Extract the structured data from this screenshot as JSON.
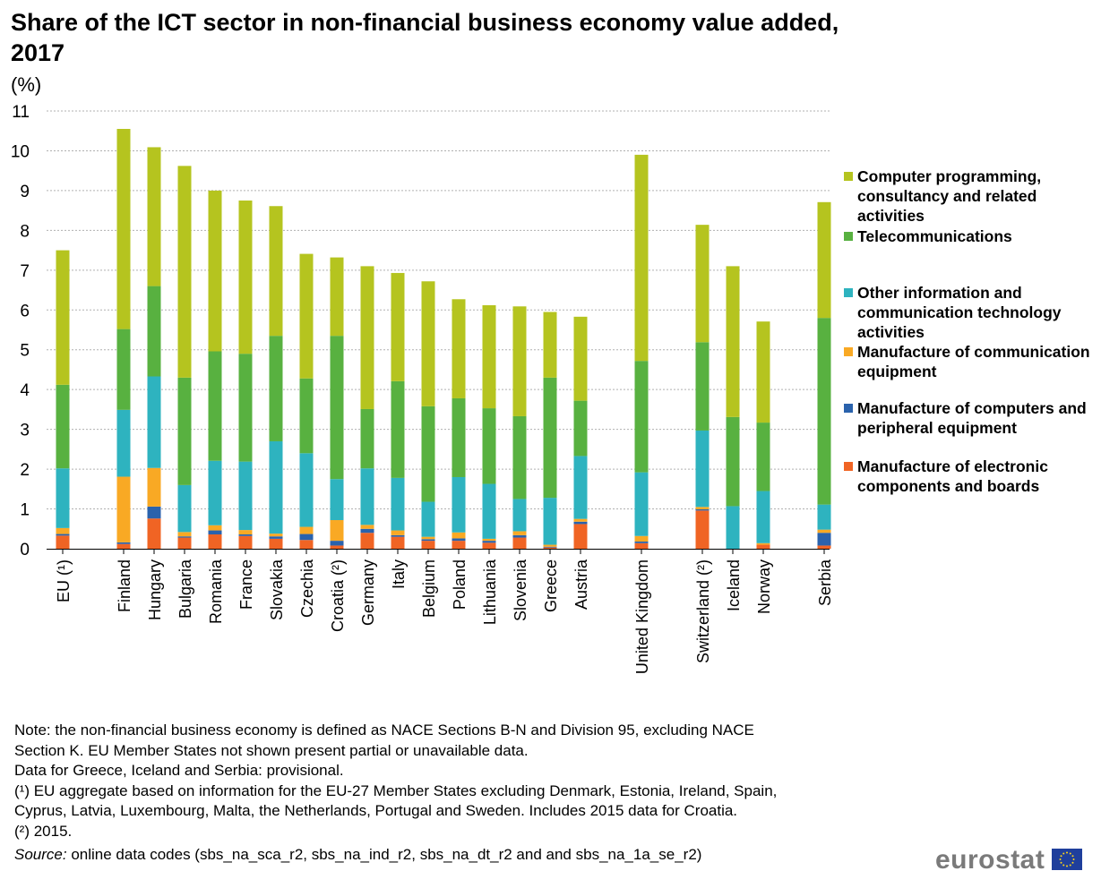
{
  "title": "Share of the ICT sector in non-financial business economy value added, 2017",
  "unit": "(%)",
  "chart_data": {
    "type": "bar",
    "stacked": true,
    "categories": [
      "EU (¹)",
      "Finland",
      "Hungary",
      "Bulgaria",
      "Romania",
      "France",
      "Slovakia",
      "Czechia",
      "Croatia (²)",
      "Germany",
      "Italy",
      "Belgium",
      "Poland",
      "Lithuania",
      "Slovenia",
      "Greece",
      "Austria",
      "United Kingdom",
      "Switzerland (²)",
      "Iceland",
      "Norway",
      "Serbia"
    ],
    "group_breaks_after": [
      "EU (¹)",
      "Austria",
      "United Kingdom",
      "Norway"
    ],
    "ylim": [
      0,
      11
    ],
    "yticks": [
      0,
      1,
      2,
      3,
      4,
      5,
      6,
      7,
      8,
      9,
      10,
      11
    ],
    "grid": true,
    "legend_position": "right",
    "series": [
      {
        "name": "Manufacture of electronic components and boards",
        "color": "#f06424",
        "values": [
          0.33,
          0.12,
          0.76,
          0.28,
          0.36,
          0.32,
          0.25,
          0.22,
          0.08,
          0.4,
          0.3,
          0.2,
          0.2,
          0.15,
          0.28,
          0.03,
          0.62,
          0.14,
          0.96,
          0.0,
          0.1,
          0.08
        ]
      },
      {
        "name": "Manufacture of computers and peripheral equipment",
        "color": "#2a62ac",
        "values": [
          0.04,
          0.04,
          0.3,
          0.03,
          0.1,
          0.04,
          0.06,
          0.15,
          0.12,
          0.1,
          0.04,
          0.04,
          0.06,
          0.05,
          0.06,
          0.02,
          0.06,
          0.04,
          0.03,
          0.0,
          0.0,
          0.32
        ]
      },
      {
        "name": "Manufacture of communication equipment",
        "color": "#f9a924",
        "values": [
          0.15,
          1.65,
          0.97,
          0.11,
          0.13,
          0.11,
          0.07,
          0.18,
          0.52,
          0.1,
          0.12,
          0.06,
          0.15,
          0.05,
          0.1,
          0.05,
          0.07,
          0.14,
          0.06,
          0.0,
          0.04,
          0.08
        ]
      },
      {
        "name": "Other information and communication technology activities",
        "color": "#2eb3bf",
        "values": [
          1.5,
          1.68,
          2.3,
          1.18,
          1.62,
          1.72,
          2.32,
          1.85,
          1.03,
          1.42,
          1.32,
          0.88,
          1.39,
          1.38,
          0.81,
          1.18,
          1.58,
          1.6,
          1.92,
          1.07,
          1.31,
          0.63
        ]
      },
      {
        "name": "Telecommunications",
        "color": "#58b140",
        "values": [
          2.1,
          2.03,
          2.27,
          2.7,
          2.75,
          2.71,
          2.65,
          1.88,
          3.6,
          1.49,
          2.43,
          2.4,
          1.98,
          1.9,
          2.08,
          3.02,
          1.39,
          2.8,
          2.22,
          2.24,
          1.72,
          4.69
        ]
      },
      {
        "name": "Computer programming, consultancy and related activities",
        "color": "#b5c41f",
        "values": [
          3.38,
          5.03,
          3.49,
          5.32,
          4.04,
          3.85,
          3.26,
          3.13,
          1.97,
          3.59,
          2.72,
          3.14,
          2.49,
          2.59,
          2.76,
          1.65,
          2.11,
          5.18,
          2.95,
          3.79,
          2.54,
          2.91
        ]
      }
    ]
  },
  "notes": [
    "Note: the non-financial business economy is defined as NACE Sections B-N and Division 95, excluding NACE",
    "Section K. EU Member States not shown present partial or unavailable data.",
    "Data for Greece, Iceland and Serbia: provisional.",
    "(¹) EU aggregate based on information for the EU-27 Member States excluding Denmark, Estonia, Ireland, Spain,",
    "Cyprus, Latvia, Luxembourg, Malta, the Netherlands, Portugal and Sweden. Includes 2015 data for Croatia.",
    "(²) 2015."
  ],
  "source": {
    "label": "Source:",
    "text": " online data codes (sbs_na_sca_r2, sbs_na_ind_r2, sbs_na_dt_r2 and and sbs_na_1a_se_r2)"
  },
  "logo": {
    "text": "eurostat"
  }
}
